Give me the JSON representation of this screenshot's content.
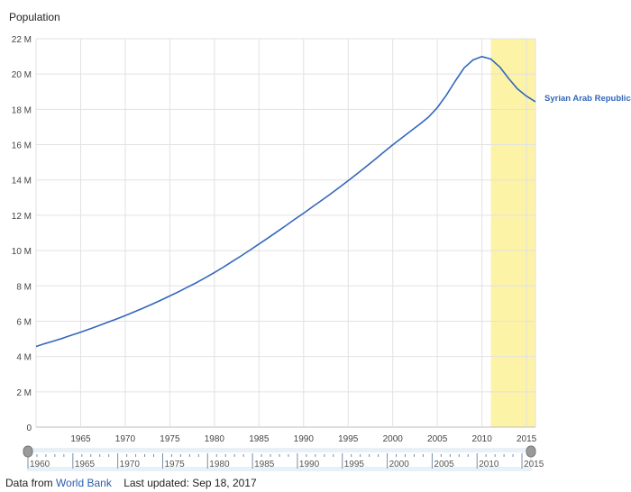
{
  "chart_data": {
    "type": "line",
    "title": "Population",
    "xlabel": "",
    "ylabel": "",
    "xlim": [
      1960,
      2016
    ],
    "ylim": [
      0,
      22000000
    ],
    "y_ticks": [
      0,
      2000000,
      4000000,
      6000000,
      8000000,
      10000000,
      12000000,
      14000000,
      16000000,
      18000000,
      20000000,
      22000000
    ],
    "y_tick_labels": [
      "0",
      "2 M",
      "4 M",
      "6 M",
      "8 M",
      "10 M",
      "12 M",
      "14 M",
      "16 M",
      "18 M",
      "20 M",
      "22 M"
    ],
    "x_ticks": [
      1965,
      1970,
      1975,
      1980,
      1985,
      1990,
      1995,
      2000,
      2005,
      2010,
      2015
    ],
    "x_tick_labels": [
      "1965",
      "1970",
      "1975",
      "1980",
      "1985",
      "1990",
      "1995",
      "2000",
      "2005",
      "2010",
      "2015"
    ],
    "grid": true,
    "highlight_range": [
      2011,
      2016
    ],
    "highlight_color": "#fdf3a7",
    "series": [
      {
        "name": "Syrian Arab Republic",
        "color": "#3366bb",
        "x": [
          1960,
          1961,
          1962,
          1963,
          1964,
          1965,
          1966,
          1967,
          1968,
          1969,
          1970,
          1971,
          1972,
          1973,
          1974,
          1975,
          1976,
          1977,
          1978,
          1979,
          1980,
          1981,
          1982,
          1983,
          1984,
          1985,
          1986,
          1987,
          1988,
          1989,
          1990,
          1991,
          1992,
          1993,
          1994,
          1995,
          1996,
          1997,
          1998,
          1999,
          2000,
          2001,
          2002,
          2003,
          2004,
          2005,
          2006,
          2007,
          2008,
          2009,
          2010,
          2011,
          2012,
          2013,
          2014,
          2015,
          2016
        ],
        "values": [
          4570000,
          4730000,
          4880000,
          5040000,
          5210000,
          5380000,
          5560000,
          5740000,
          5930000,
          6120000,
          6320000,
          6530000,
          6740000,
          6960000,
          7190000,
          7430000,
          7670000,
          7930000,
          8190000,
          8470000,
          8760000,
          9060000,
          9380000,
          9700000,
          10030000,
          10370000,
          10710000,
          11060000,
          11410000,
          11770000,
          12120000,
          12480000,
          12840000,
          13200000,
          13580000,
          13960000,
          14350000,
          14750000,
          15160000,
          15580000,
          15990000,
          16380000,
          16770000,
          17150000,
          17560000,
          18100000,
          18800000,
          19600000,
          20350000,
          20800000,
          20990000,
          20850000,
          20400000,
          19750000,
          19150000,
          18750000,
          18430000
        ]
      }
    ]
  },
  "navigator": {
    "start_label": "1960",
    "tick_labels": [
      "1965",
      "1970",
      "1975",
      "1980",
      "1985",
      "1990",
      "1995",
      "2000",
      "2005",
      "2010",
      "2015"
    ]
  },
  "footer": {
    "prefix": "Data from",
    "source_link": "World Bank",
    "updated": "Last updated: Sep 18, 2017"
  }
}
